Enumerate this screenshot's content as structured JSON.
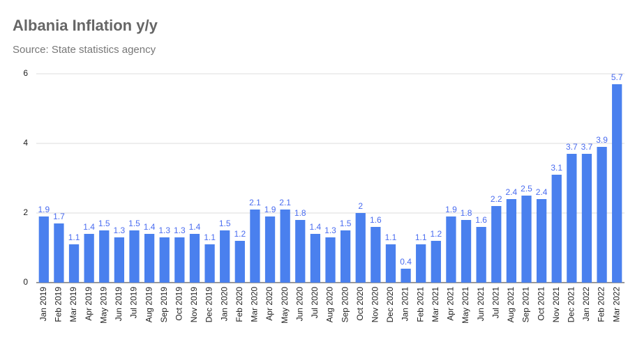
{
  "chart_data": {
    "type": "bar",
    "title": "Albania Inflation y/y",
    "subtitle": "Source: State statistics agency",
    "categories": [
      "Jan 2019",
      "Feb 2019",
      "Mar 2019",
      "Apr 2019",
      "May 2019",
      "Jun 2019",
      "Jul 2019",
      "Aug 2019",
      "Sep 2019",
      "Oct 2019",
      "Nov 2019",
      "Dec 2019",
      "Jan 2020",
      "Feb 2020",
      "Mar 2020",
      "Apr 2020",
      "May 2020",
      "Jun 2020",
      "Jul 2020",
      "Aug 2020",
      "Sep 2020",
      "Oct 2020",
      "Nov 2020",
      "Dec 2020",
      "Jan 2021",
      "Feb 2021",
      "Mar 2021",
      "Apr 2021",
      "May 2021",
      "Jun 2021",
      "Jul 2021",
      "Aug 2021",
      "Sep 2021",
      "Oct 2021",
      "Nov 2021",
      "Dec 2021",
      "Jan 2022",
      "Feb 2022",
      "Mar 2022"
    ],
    "values": [
      1.9,
      1.7,
      1.1,
      1.4,
      1.5,
      1.3,
      1.5,
      1.4,
      1.3,
      1.3,
      1.4,
      1.1,
      1.5,
      1.2,
      2.1,
      1.9,
      2.1,
      1.8,
      1.4,
      1.3,
      1.5,
      2,
      1.6,
      1.1,
      0.4,
      1.1,
      1.2,
      1.9,
      1.8,
      1.6,
      2.2,
      2.4,
      2.5,
      2.4,
      3.1,
      3.7,
      3.7,
      3.9,
      5.7
    ],
    "color": "#4a80ee",
    "ylim": [
      0,
      6
    ],
    "yticks": [
      0,
      2,
      4,
      6
    ],
    "grid": true
  }
}
